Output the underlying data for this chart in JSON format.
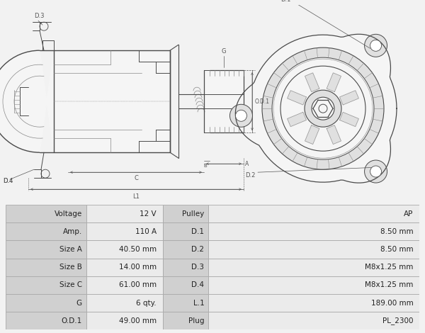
{
  "bg_color": "#f2f2f2",
  "table_border": "#aaaaaa",
  "table_label_bg": "#d0d0d0",
  "table_val_bg": "#ebebeb",
  "table_data": [
    [
      "Voltage",
      "12 V",
      "Pulley",
      "AP"
    ],
    [
      "Amp.",
      "110 A",
      "D.1",
      "8.50 mm"
    ],
    [
      "Size A",
      "40.50 mm",
      "D.2",
      "8.50 mm"
    ],
    [
      "Size B",
      "14.00 mm",
      "D.3",
      "M8x1.25 mm"
    ],
    [
      "Size C",
      "61.00 mm",
      "D.4",
      "M8x1.25 mm"
    ],
    [
      "G",
      "6 qty.",
      "L.1",
      "189.00 mm"
    ],
    [
      "O.D.1",
      "49.00 mm",
      "Plug",
      "PL_2300"
    ]
  ],
  "line_color": "#4a4a4a",
  "line_light": "#888888",
  "dim_color": "#555555",
  "fill_body": "#f5f5f5",
  "fill_dark": "#e0e0e0"
}
